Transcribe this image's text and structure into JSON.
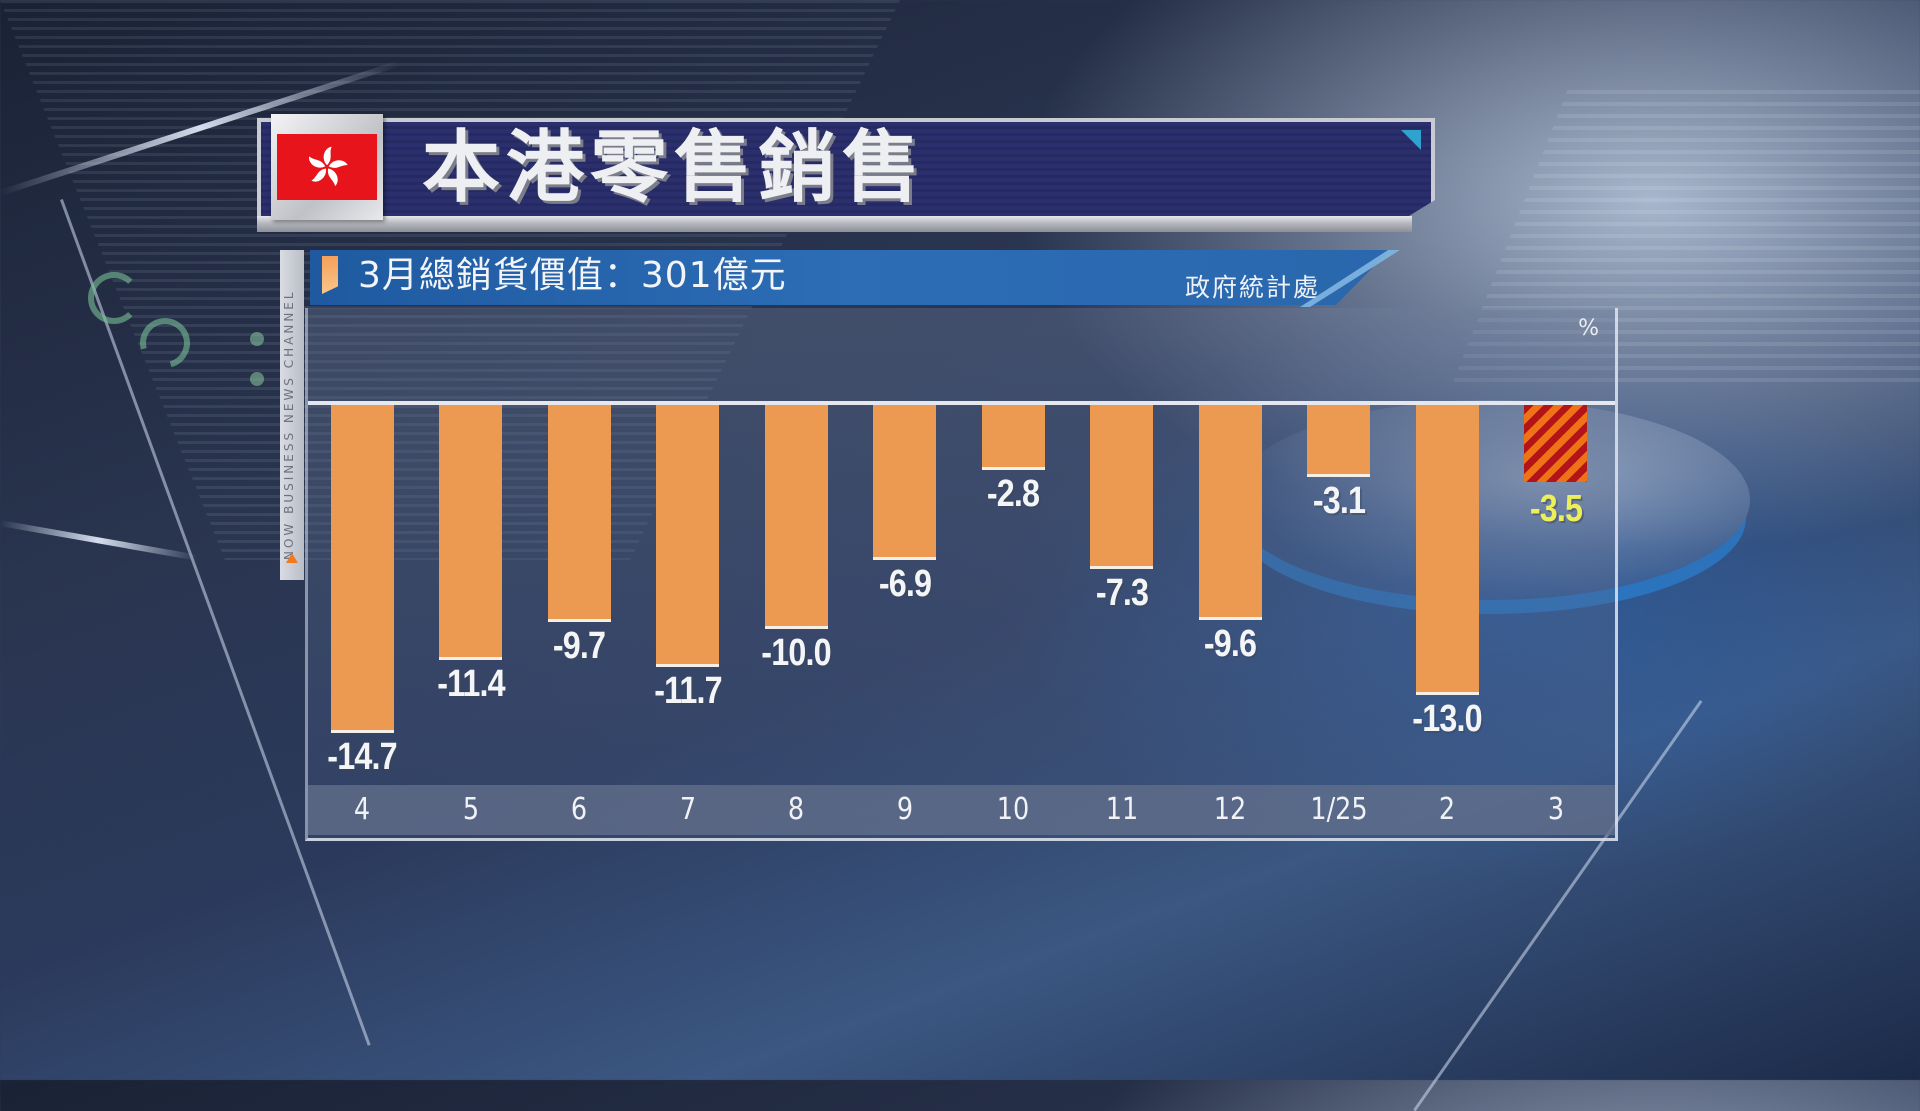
{
  "header": {
    "title": "本港零售銷售",
    "flag": "hong-kong-flag"
  },
  "subtitle": {
    "text": "3月總銷貨價值：301億元",
    "source": "政府統計處"
  },
  "channel": {
    "label": "NOW BUSINESS NEWS CHANNEL"
  },
  "colors": {
    "bar": "#ec9a52",
    "highlight_value": "#ecee5a",
    "hatch_a": "#b3141a",
    "hatch_b": "#f07216",
    "header_bg": "#2b2f6e",
    "subtitle_bg": "#2c6db6"
  },
  "chart_data": {
    "type": "bar",
    "title": "本港零售銷售",
    "subtitle": "3月總銷貨價值：301億元",
    "source": "政府統計處",
    "unit": "%",
    "xlabel": "",
    "ylabel": "%",
    "categories": [
      "4",
      "5",
      "6",
      "7",
      "8",
      "9",
      "10",
      "11",
      "12",
      "1/25",
      "2",
      "3"
    ],
    "values": [
      -14.7,
      -11.4,
      -9.7,
      -11.7,
      -10.0,
      -6.9,
      -2.8,
      -7.3,
      -9.6,
      -3.1,
      -13.0,
      -3.5
    ],
    "labels": [
      "-14.7",
      "-11.4",
      "-9.7",
      "-11.7",
      "-10.0",
      "-6.9",
      "-2.8",
      "-7.3",
      "-9.6",
      "-3.1",
      "-13.0",
      "-3.5"
    ],
    "highlight_index": 11,
    "ylim": [
      -15,
      0
    ],
    "grid": false,
    "legend": null
  }
}
